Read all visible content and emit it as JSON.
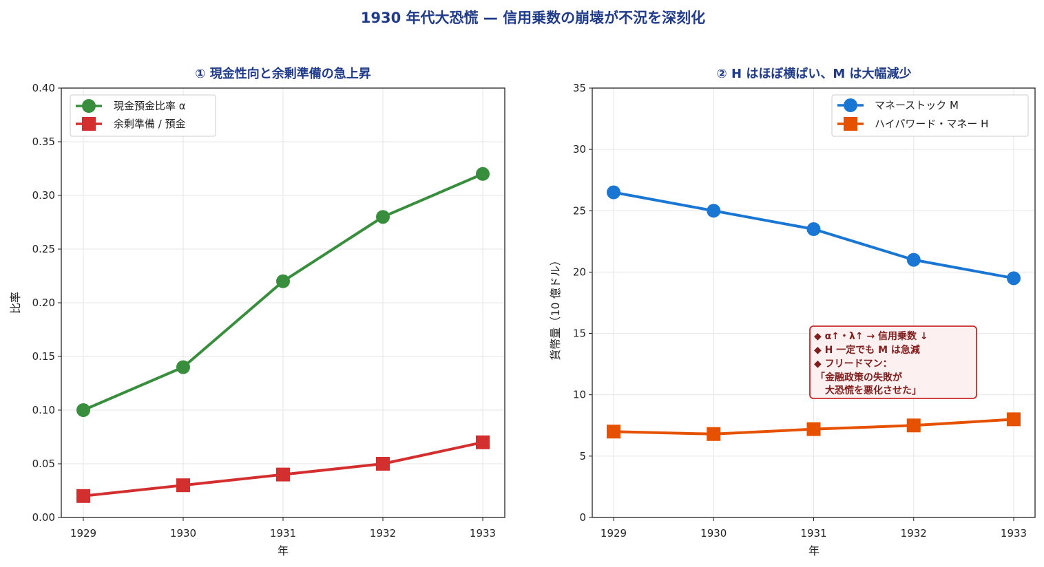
{
  "figure": {
    "title": "1930 年代大恐慌 — 信用乗数の崩壊が不況を深刻化"
  },
  "chart_data": [
    {
      "type": "line",
      "title": "① 現金性向と余剰準備の急上昇",
      "xlabel": "年",
      "ylabel": "比率",
      "x": [
        1929,
        1930,
        1931,
        1932,
        1933
      ],
      "x_ticks": [
        "1929",
        "1930",
        "1931",
        "1932",
        "1933"
      ],
      "ylim": [
        0,
        0.4
      ],
      "y_ticks": [
        "0.00",
        "0.05",
        "0.10",
        "0.15",
        "0.20",
        "0.25",
        "0.30",
        "0.35",
        "0.40"
      ],
      "grid": true,
      "legend_position": "top-left",
      "series": [
        {
          "name": "現金預金比率 α",
          "values": [
            0.1,
            0.14,
            0.22,
            0.28,
            0.32
          ],
          "color": "#388e3c",
          "marker": "circle"
        },
        {
          "name": "余剰準備 / 預金",
          "values": [
            0.02,
            0.03,
            0.04,
            0.05,
            0.07
          ],
          "color": "#d32f2f",
          "marker": "square"
        }
      ]
    },
    {
      "type": "line",
      "title": "② H はほぼ横ばい、M は大幅減少",
      "xlabel": "年",
      "ylabel": "貨幣量（10 億ドル）",
      "x": [
        1929,
        1930,
        1931,
        1932,
        1933
      ],
      "x_ticks": [
        "1929",
        "1930",
        "1931",
        "1932",
        "1933"
      ],
      "ylim": [
        0,
        35
      ],
      "y_ticks": [
        "0",
        "5",
        "10",
        "15",
        "20",
        "25",
        "30",
        "35"
      ],
      "grid": true,
      "legend_position": "top-right",
      "series": [
        {
          "name": "マネーストック M",
          "values": [
            26.5,
            25.0,
            23.5,
            21.0,
            19.5
          ],
          "color": "#1976d2",
          "marker": "circle"
        },
        {
          "name": "ハイパワード・マネー H",
          "values": [
            7.0,
            6.8,
            7.2,
            7.5,
            8.0
          ],
          "color": "#e65100",
          "marker": "square"
        }
      ],
      "annotation": {
        "lines": [
          "◆ α↑・λ↑ → 信用乗数 ↓",
          "◆ H 一定でも M は急減",
          "◆ フリードマン：",
          "「金融政策の失敗が",
          "　大恐慌を悪化させた」"
        ],
        "border_color": "#c62828",
        "background_color": "#fdf0f0",
        "text_color": "#7f1d1d"
      }
    }
  ]
}
